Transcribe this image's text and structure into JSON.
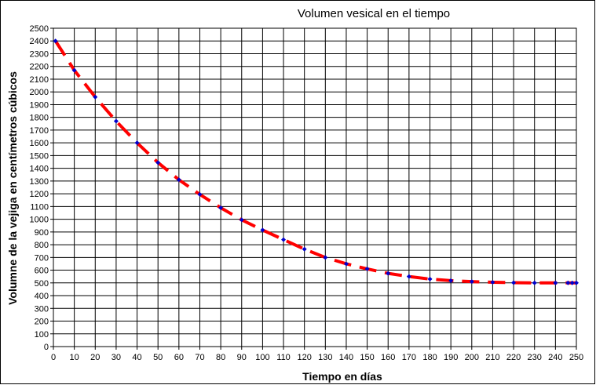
{
  "chart_data": {
    "type": "line",
    "title": "Volumen vesical en el tiempo",
    "xlabel": "Tiempo en días",
    "ylabel": "Volumne de la vejiga en centímetros cúbicos",
    "xlim": [
      0,
      250
    ],
    "ylim": [
      0,
      2500
    ],
    "x_ticks": [
      0,
      10,
      20,
      30,
      40,
      50,
      60,
      70,
      80,
      90,
      100,
      110,
      120,
      130,
      140,
      150,
      160,
      170,
      180,
      190,
      200,
      210,
      220,
      230,
      240,
      250
    ],
    "y_ticks": [
      0,
      100,
      200,
      300,
      400,
      500,
      600,
      700,
      800,
      900,
      1000,
      1100,
      1200,
      1300,
      1400,
      1500,
      1600,
      1700,
      1800,
      1900,
      2000,
      2100,
      2200,
      2300,
      2400,
      2500
    ],
    "grid": true,
    "series": [
      {
        "line_color": "#ff0000",
        "marker_color": "#0000cc",
        "dashed": true,
        "x": [
          1,
          10,
          20,
          30,
          40,
          50,
          60,
          70,
          80,
          90,
          100,
          110,
          120,
          130,
          140,
          150,
          160,
          170,
          180,
          190,
          200,
          210,
          220,
          230,
          240,
          246,
          248,
          250
        ],
        "y": [
          2400,
          2170,
          1960,
          1770,
          1600,
          1445,
          1310,
          1195,
          1090,
          995,
          915,
          840,
          765,
          700,
          650,
          610,
          575,
          550,
          530,
          518,
          510,
          505,
          502,
          500,
          500,
          500,
          500,
          500
        ]
      }
    ]
  }
}
